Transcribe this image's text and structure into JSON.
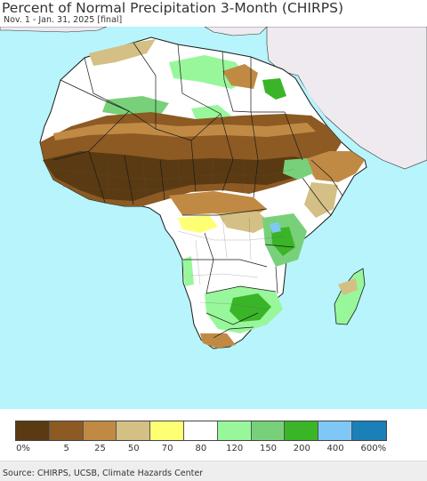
{
  "title": "Percent of Normal Precipitation 3-Month (CHIRPS)",
  "subtitle": "Nov. 1 - Jan. 31, 2025 [final]",
  "legend": {
    "colors": [
      "#5a3a12",
      "#8c5a22",
      "#c08a45",
      "#d4bf85",
      "#ffff73",
      "#ffffff",
      "#98f79b",
      "#78d17a",
      "#3ab528",
      "#7fc8f5",
      "#1b7fb8"
    ],
    "ticks": [
      "0%",
      "5",
      "25",
      "50",
      "70",
      "80",
      "120",
      "150",
      "200",
      "400",
      "600%"
    ]
  },
  "colors": {
    "ocean": "#b7f4fb",
    "outside_land": "#eeeaf0",
    "border": "#1a1a1a"
  },
  "source": "Source: CHIRPS, UCSB, Climate Hazards Center"
}
